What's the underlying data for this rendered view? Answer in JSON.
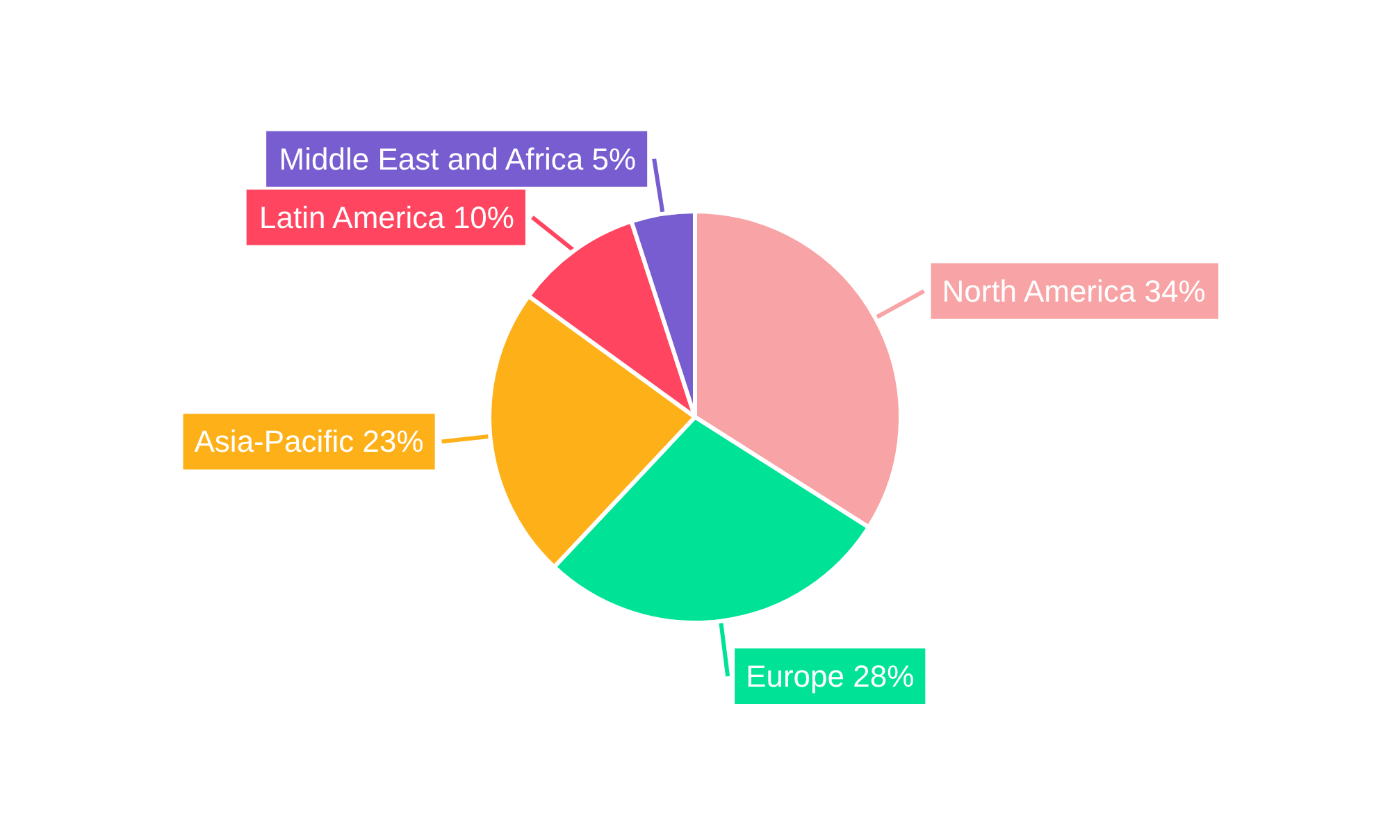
{
  "chart_data": {
    "type": "pie",
    "categories": [
      "North America",
      "Europe",
      "Asia-Pacific",
      "Latin America",
      "Middle East and Africa"
    ],
    "values": [
      34,
      28,
      23,
      10,
      5
    ],
    "value_labels": [
      "34%",
      "28%",
      "23%",
      "10%",
      "5%"
    ],
    "colors": [
      "#f8a3a5",
      "#00e396",
      "#feb019",
      "#ff4560",
      "#775dd0"
    ],
    "legend": false
  }
}
